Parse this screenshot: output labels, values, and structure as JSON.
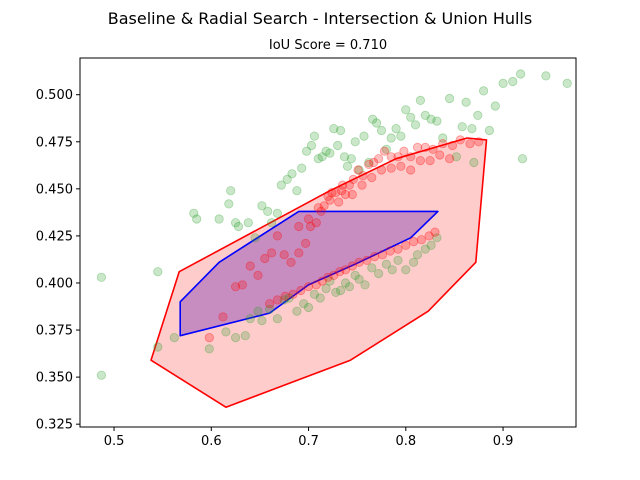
{
  "chart_data": {
    "type": "scatter",
    "title": "Baseline & Radial Search - Intersection & Union Hulls",
    "subtitle": "IoU Score = 0.710",
    "xlim": [
      0.465,
      0.975
    ],
    "ylim": [
      0.3235,
      0.5195
    ],
    "xticks": [
      0.5,
      0.6,
      0.7,
      0.8,
      0.9
    ],
    "yticks": [
      0.325,
      0.35,
      0.375,
      0.4,
      0.425,
      0.45,
      0.475,
      0.5
    ],
    "grid": false,
    "colors": {
      "union_fill": "#ff0000",
      "union_edge": "#ff0000",
      "intersection_fill": "#9b59b6",
      "intersection_edge": "#0000ff",
      "green_points": "#2ca02c",
      "red_points": "#ff0000"
    },
    "union_hull": [
      [
        0.538,
        0.359
      ],
      [
        0.615,
        0.334
      ],
      [
        0.743,
        0.359
      ],
      [
        0.823,
        0.385
      ],
      [
        0.872,
        0.411
      ],
      [
        0.883,
        0.476
      ],
      [
        0.863,
        0.477
      ],
      [
        0.79,
        0.466
      ],
      [
        0.722,
        0.449
      ],
      [
        0.567,
        0.406
      ]
    ],
    "intersection_hull": [
      [
        0.568,
        0.39
      ],
      [
        0.608,
        0.411
      ],
      [
        0.69,
        0.438
      ],
      [
        0.833,
        0.438
      ],
      [
        0.805,
        0.424
      ],
      [
        0.748,
        0.41
      ],
      [
        0.7,
        0.399
      ],
      [
        0.66,
        0.384
      ],
      [
        0.568,
        0.372
      ]
    ],
    "series": [
      {
        "color": "green",
        "points": [
          [
            0.487,
            0.403
          ],
          [
            0.487,
            0.351
          ],
          [
            0.545,
            0.406
          ],
          [
            0.545,
            0.366
          ],
          [
            0.562,
            0.371
          ],
          [
            0.582,
            0.437
          ],
          [
            0.585,
            0.434
          ],
          [
            0.608,
            0.434
          ],
          [
            0.62,
            0.449
          ],
          [
            0.618,
            0.442
          ],
          [
            0.625,
            0.432
          ],
          [
            0.628,
            0.43
          ],
          [
            0.638,
            0.432
          ],
          [
            0.645,
            0.424
          ],
          [
            0.652,
            0.441
          ],
          [
            0.658,
            0.438
          ],
          [
            0.662,
            0.432
          ],
          [
            0.668,
            0.437
          ],
          [
            0.672,
            0.452
          ],
          [
            0.678,
            0.455
          ],
          [
            0.683,
            0.458
          ],
          [
            0.688,
            0.449
          ],
          [
            0.693,
            0.461
          ],
          [
            0.698,
            0.47
          ],
          [
            0.703,
            0.473
          ],
          [
            0.706,
            0.478
          ],
          [
            0.71,
            0.466
          ],
          [
            0.714,
            0.467
          ],
          [
            0.718,
            0.47
          ],
          [
            0.722,
            0.469
          ],
          [
            0.726,
            0.482
          ],
          [
            0.73,
            0.473
          ],
          [
            0.733,
            0.481
          ],
          [
            0.737,
            0.467
          ],
          [
            0.74,
            0.462
          ],
          [
            0.744,
            0.466
          ],
          [
            0.748,
            0.475
          ],
          [
            0.752,
            0.46
          ],
          [
            0.757,
            0.478
          ],
          [
            0.762,
            0.464
          ],
          [
            0.766,
            0.487
          ],
          [
            0.77,
            0.485
          ],
          [
            0.775,
            0.481
          ],
          [
            0.78,
            0.471
          ],
          [
            0.785,
            0.477
          ],
          [
            0.79,
            0.482
          ],
          [
            0.795,
            0.478
          ],
          [
            0.8,
            0.492
          ],
          [
            0.805,
            0.488
          ],
          [
            0.81,
            0.484
          ],
          [
            0.815,
            0.497
          ],
          [
            0.82,
            0.489
          ],
          [
            0.826,
            0.487
          ],
          [
            0.832,
            0.486
          ],
          [
            0.838,
            0.477
          ],
          [
            0.845,
            0.498
          ],
          [
            0.852,
            0.467
          ],
          [
            0.858,
            0.483
          ],
          [
            0.862,
            0.496
          ],
          [
            0.868,
            0.482
          ],
          [
            0.874,
            0.489
          ],
          [
            0.88,
            0.502
          ],
          [
            0.886,
            0.481
          ],
          [
            0.892,
            0.494
          ],
          [
            0.9,
            0.506
          ],
          [
            0.91,
            0.507
          ],
          [
            0.918,
            0.511
          ],
          [
            0.92,
            0.466
          ],
          [
            0.944,
            0.51
          ],
          [
            0.966,
            0.506
          ],
          [
            0.87,
            0.464
          ],
          [
            0.635,
            0.372
          ],
          [
            0.64,
            0.381
          ],
          [
            0.648,
            0.385
          ],
          [
            0.652,
            0.38
          ],
          [
            0.66,
            0.386
          ],
          [
            0.668,
            0.381
          ],
          [
            0.675,
            0.391
          ],
          [
            0.68,
            0.392
          ],
          [
            0.688,
            0.385
          ],
          [
            0.695,
            0.389
          ],
          [
            0.7,
            0.387
          ],
          [
            0.706,
            0.394
          ],
          [
            0.712,
            0.392
          ],
          [
            0.718,
            0.397
          ],
          [
            0.722,
            0.401
          ],
          [
            0.728,
            0.395
          ],
          [
            0.733,
            0.396
          ],
          [
            0.738,
            0.4
          ],
          [
            0.742,
            0.398
          ],
          [
            0.748,
            0.404
          ],
          [
            0.752,
            0.402
          ],
          [
            0.758,
            0.399
          ],
          [
            0.765,
            0.408
          ],
          [
            0.772,
            0.405
          ],
          [
            0.78,
            0.41
          ],
          [
            0.786,
            0.407
          ],
          [
            0.792,
            0.412
          ],
          [
            0.8,
            0.407
          ],
          [
            0.808,
            0.411
          ],
          [
            0.812,
            0.415
          ],
          [
            0.82,
            0.418
          ],
          [
            0.826,
            0.42
          ],
          [
            0.832,
            0.424
          ],
          [
            0.625,
            0.371
          ],
          [
            0.615,
            0.374
          ],
          [
            0.598,
            0.365
          ]
        ]
      },
      {
        "color": "red",
        "points": [
          [
            0.598,
            0.371
          ],
          [
            0.612,
            0.382
          ],
          [
            0.625,
            0.398
          ],
          [
            0.632,
            0.399
          ],
          [
            0.64,
            0.409
          ],
          [
            0.648,
            0.404
          ],
          [
            0.655,
            0.413
          ],
          [
            0.662,
            0.416
          ],
          [
            0.668,
            0.425
          ],
          [
            0.675,
            0.415
          ],
          [
            0.682,
            0.411
          ],
          [
            0.69,
            0.416
          ],
          [
            0.697,
            0.421
          ],
          [
            0.702,
            0.43
          ],
          [
            0.708,
            0.432
          ],
          [
            0.713,
            0.438
          ],
          [
            0.716,
            0.441
          ],
          [
            0.72,
            0.446
          ],
          [
            0.724,
            0.448
          ],
          [
            0.728,
            0.448
          ],
          [
            0.731,
            0.443
          ],
          [
            0.734,
            0.449
          ],
          [
            0.738,
            0.447
          ],
          [
            0.742,
            0.452
          ],
          [
            0.746,
            0.455
          ],
          [
            0.751,
            0.46
          ],
          [
            0.756,
            0.457
          ],
          [
            0.762,
            0.463
          ],
          [
            0.767,
            0.464
          ],
          [
            0.772,
            0.466
          ],
          [
            0.778,
            0.47
          ],
          [
            0.785,
            0.467
          ],
          [
            0.792,
            0.467
          ],
          [
            0.798,
            0.47
          ],
          [
            0.805,
            0.467
          ],
          [
            0.812,
            0.472
          ],
          [
            0.82,
            0.472
          ],
          [
            0.828,
            0.471
          ],
          [
            0.838,
            0.474
          ],
          [
            0.848,
            0.473
          ],
          [
            0.856,
            0.476
          ],
          [
            0.866,
            0.474
          ],
          [
            0.875,
            0.475
          ],
          [
            0.66,
            0.389
          ],
          [
            0.668,
            0.391
          ],
          [
            0.676,
            0.393
          ],
          [
            0.684,
            0.394
          ],
          [
            0.692,
            0.396
          ],
          [
            0.7,
            0.398
          ],
          [
            0.708,
            0.399
          ],
          [
            0.714,
            0.401
          ],
          [
            0.72,
            0.403
          ],
          [
            0.726,
            0.404
          ],
          [
            0.732,
            0.406
          ],
          [
            0.738,
            0.407
          ],
          [
            0.745,
            0.409
          ],
          [
            0.752,
            0.411
          ],
          [
            0.76,
            0.412
          ],
          [
            0.768,
            0.414
          ],
          [
            0.776,
            0.415
          ],
          [
            0.784,
            0.417
          ],
          [
            0.792,
            0.418
          ],
          [
            0.8,
            0.42
          ],
          [
            0.808,
            0.422
          ],
          [
            0.816,
            0.423
          ],
          [
            0.824,
            0.425
          ],
          [
            0.83,
            0.427
          ],
          [
            0.69,
            0.43
          ],
          [
            0.7,
            0.434
          ],
          [
            0.71,
            0.44
          ],
          [
            0.722,
            0.444
          ],
          [
            0.735,
            0.452
          ],
          [
            0.745,
            0.447
          ],
          [
            0.755,
            0.452
          ],
          [
            0.765,
            0.456
          ],
          [
            0.775,
            0.46
          ],
          [
            0.785,
            0.461
          ],
          [
            0.795,
            0.462
          ],
          [
            0.805,
            0.46
          ],
          [
            0.815,
            0.465
          ],
          [
            0.825,
            0.465
          ],
          [
            0.835,
            0.468
          ],
          [
            0.845,
            0.466
          ]
        ]
      }
    ]
  }
}
